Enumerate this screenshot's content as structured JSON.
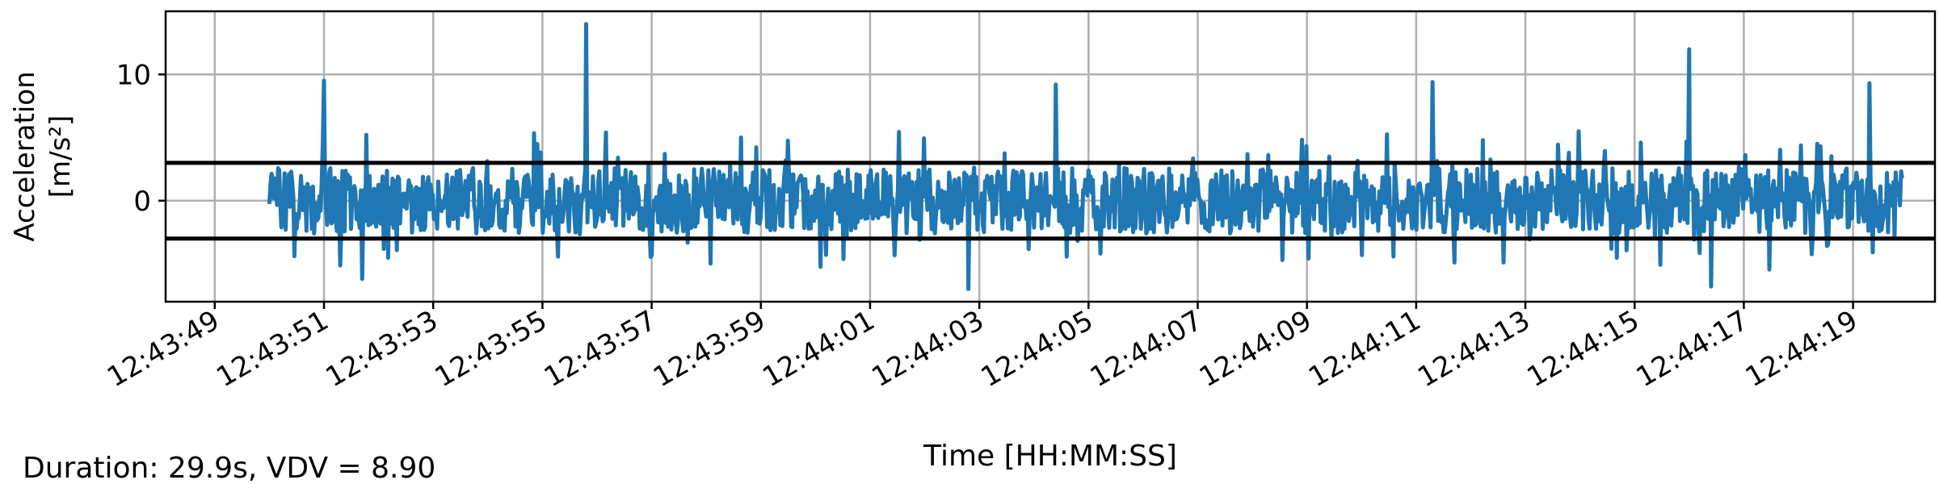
{
  "chart_data": {
    "type": "line",
    "xlabel": "Time [HH:MM:SS]",
    "ylabel_lines": [
      "Acceleration",
      "[m/s²]"
    ],
    "footer": "Duration: 29.9s, VDV = 8.90",
    "x_range": [
      "12:43:48.1",
      "12:44:20.5"
    ],
    "ylim": [
      -8,
      15
    ],
    "grid": true,
    "x_ticks": [
      "12:43:49",
      "12:43:51",
      "12:43:53",
      "12:43:55",
      "12:43:57",
      "12:43:59",
      "12:44:01",
      "12:44:03",
      "12:44:05",
      "12:44:07",
      "12:44:09",
      "12:44:11",
      "12:44:13",
      "12:44:15",
      "12:44:17",
      "12:44:19"
    ],
    "y_ticks": [
      0,
      10
    ],
    "threshold_lines": [
      3,
      -3
    ],
    "series": [
      {
        "color": "#1f77b4",
        "start": "12:43:50.0",
        "end": "12:44:19.9",
        "duration_s": 29.9,
        "typical_range": [
          -3.5,
          3.5
        ],
        "peaks": [
          {
            "t": "12:43:55.8",
            "value": 14.0
          },
          {
            "t": "12:44:16.0",
            "value": 12.0
          },
          {
            "t": "12:43:51.0",
            "value": 9.5
          },
          {
            "t": "12:44:04.4",
            "value": 9.2
          },
          {
            "t": "12:44:11.3",
            "value": 9.4
          },
          {
            "t": "12:44:19.3",
            "value": 9.3
          }
        ],
        "troughs": [
          {
            "t": "12:44:02.8",
            "value": -7.0
          },
          {
            "t": "12:44:16.4",
            "value": -6.8
          },
          {
            "t": "12:43:51.7",
            "value": -6.2
          }
        ]
      }
    ]
  },
  "colors": {
    "signal": "#1f77b4",
    "grid": "#b0b0b0",
    "threshold": "#000000"
  }
}
